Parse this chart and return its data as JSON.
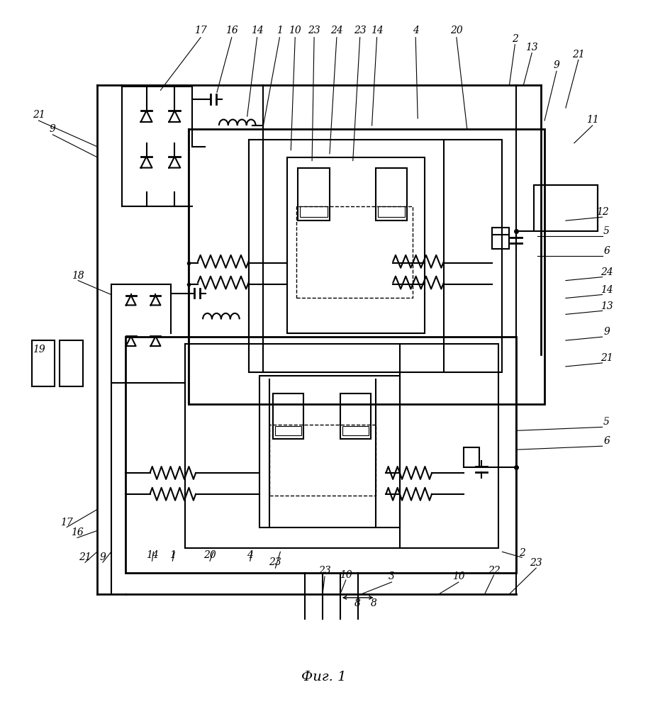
{
  "title": "Фиг. 1",
  "bg_color": "#ffffff",
  "line_color": "#000000",
  "fig_width": 9.14,
  "fig_height": 10.0
}
